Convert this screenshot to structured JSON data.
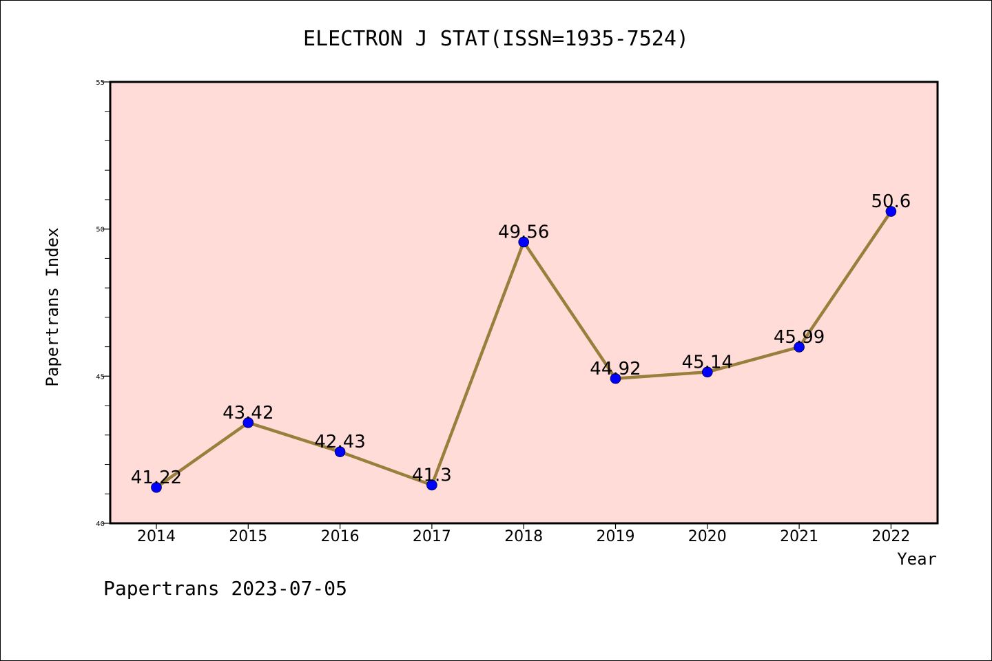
{
  "chart_data": {
    "type": "line",
    "title": "ELECTRON J STAT(ISSN=1935-7524)",
    "xlabel": "Year",
    "ylabel": "Papertrans Index",
    "x": [
      "2014",
      "2015",
      "2016",
      "2017",
      "2018",
      "2019",
      "2020",
      "2021",
      "2022"
    ],
    "series": [
      {
        "values": [
          41.22,
          43.42,
          42.43,
          41.3,
          49.56,
          44.92,
          45.14,
          45.99,
          50.6
        ],
        "labels": [
          "41.22",
          "43.42",
          "42.43",
          "41.3",
          "49.56",
          "44.92",
          "45.14",
          "45.99",
          "50.6"
        ],
        "color": "#9a7f3c",
        "marker_color": "#0000ff"
      }
    ],
    "ylim": [
      40,
      55
    ],
    "yticks": [
      "40",
      "45",
      "50",
      "55"
    ],
    "grid": false,
    "plot_background": "#ffdcd8"
  },
  "footer": "Papertrans 2023-07-05"
}
